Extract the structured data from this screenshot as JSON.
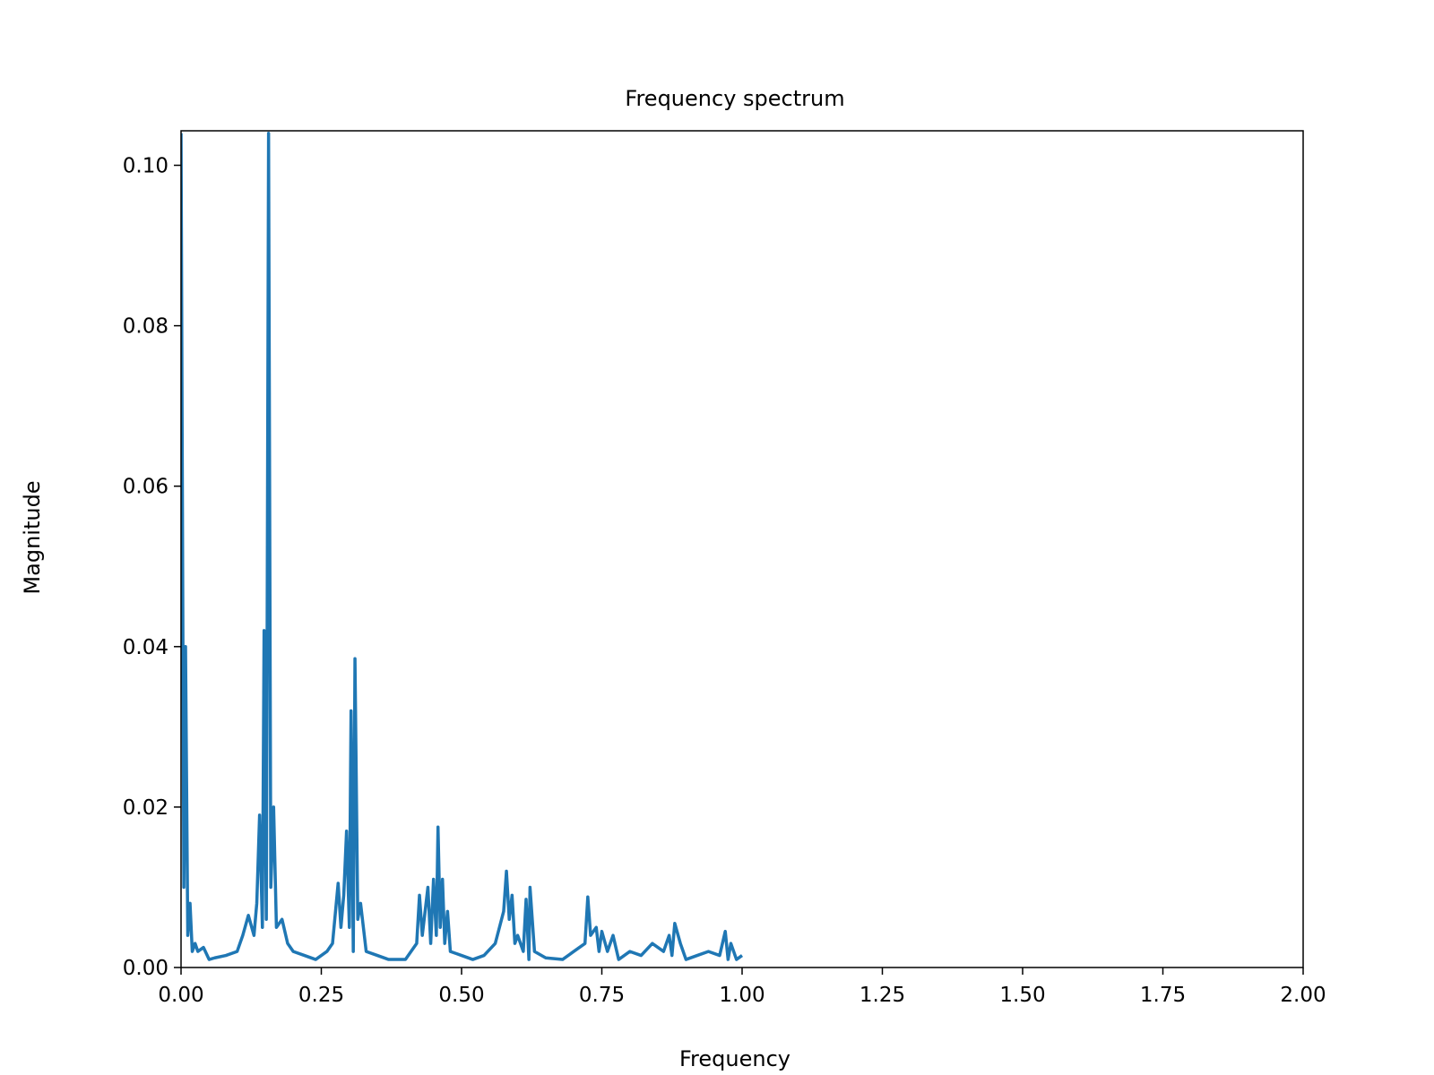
{
  "chart_data": {
    "type": "line",
    "title": "Frequency spectrum",
    "x_label": "Frequency",
    "y_label": "Magnitude",
    "xlim": [
      0,
      2
    ],
    "ylim": [
      0,
      0.1043
    ],
    "xticks": [
      {
        "value": 0,
        "label": "0.00"
      },
      0.25,
      {
        "value": 0.5,
        "label": "0.50"
      },
      0.75,
      {
        "value": 1,
        "label": "1.00"
      },
      1.25,
      {
        "value": 1.5,
        "label": "1.50"
      },
      1.75,
      {
        "value": 2,
        "label": "2.00"
      }
    ],
    "yticks": [
      {
        "value": 0,
        "label": "0.00"
      },
      0.02,
      0.04,
      0.06,
      0.08,
      {
        "value": 0.1,
        "label": "0.10"
      }
    ],
    "series": [
      {
        "color": "#1f77b4",
        "x": [
          0,
          0.005,
          0.008,
          0.012,
          0.016,
          0.02,
          0.025,
          0.03,
          0.04,
          0.05,
          0.06,
          0.08,
          0.1,
          0.11,
          0.12,
          0.13,
          0.135,
          0.14,
          0.145,
          0.148,
          0.152,
          0.156,
          0.16,
          0.165,
          0.17,
          0.18,
          0.19,
          0.2,
          0.22,
          0.24,
          0.26,
          0.27,
          0.28,
          0.285,
          0.29,
          0.295,
          0.3,
          0.303,
          0.307,
          0.31,
          0.315,
          0.32,
          0.33,
          0.35,
          0.37,
          0.4,
          0.42,
          0.425,
          0.43,
          0.44,
          0.445,
          0.45,
          0.455,
          0.458,
          0.462,
          0.466,
          0.47,
          0.475,
          0.48,
          0.5,
          0.52,
          0.54,
          0.56,
          0.575,
          0.58,
          0.585,
          0.59,
          0.595,
          0.6,
          0.61,
          0.615,
          0.62,
          0.622,
          0.63,
          0.65,
          0.68,
          0.7,
          0.72,
          0.725,
          0.73,
          0.74,
          0.745,
          0.75,
          0.76,
          0.77,
          0.78,
          0.8,
          0.82,
          0.84,
          0.86,
          0.87,
          0.875,
          0.88,
          0.89,
          0.9,
          0.92,
          0.94,
          0.96,
          0.97,
          0.975,
          0.98,
          0.99,
          1.0
        ],
        "values": [
          0.104,
          0.01,
          0.04,
          0.004,
          0.008,
          0.002,
          0.003,
          0.002,
          0.0025,
          0.001,
          0.0012,
          0.0015,
          0.002,
          0.004,
          0.0065,
          0.004,
          0.008,
          0.019,
          0.005,
          0.042,
          0.006,
          0.104,
          0.01,
          0.02,
          0.005,
          0.006,
          0.003,
          0.002,
          0.0015,
          0.001,
          0.002,
          0.003,
          0.0105,
          0.005,
          0.009,
          0.017,
          0.005,
          0.032,
          0.002,
          0.0385,
          0.006,
          0.008,
          0.002,
          0.0015,
          0.001,
          0.001,
          0.003,
          0.009,
          0.004,
          0.01,
          0.003,
          0.011,
          0.004,
          0.0175,
          0.005,
          0.011,
          0.003,
          0.007,
          0.002,
          0.0015,
          0.001,
          0.0015,
          0.003,
          0.007,
          0.012,
          0.006,
          0.009,
          0.003,
          0.004,
          0.002,
          0.0085,
          0.001,
          0.01,
          0.002,
          0.0012,
          0.001,
          0.002,
          0.003,
          0.0088,
          0.004,
          0.005,
          0.002,
          0.0045,
          0.002,
          0.004,
          0.001,
          0.002,
          0.0015,
          0.003,
          0.002,
          0.004,
          0.0015,
          0.0055,
          0.003,
          0.001,
          0.0015,
          0.002,
          0.0015,
          0.0045,
          0.001,
          0.003,
          0.001,
          0.0015
        ]
      }
    ]
  }
}
